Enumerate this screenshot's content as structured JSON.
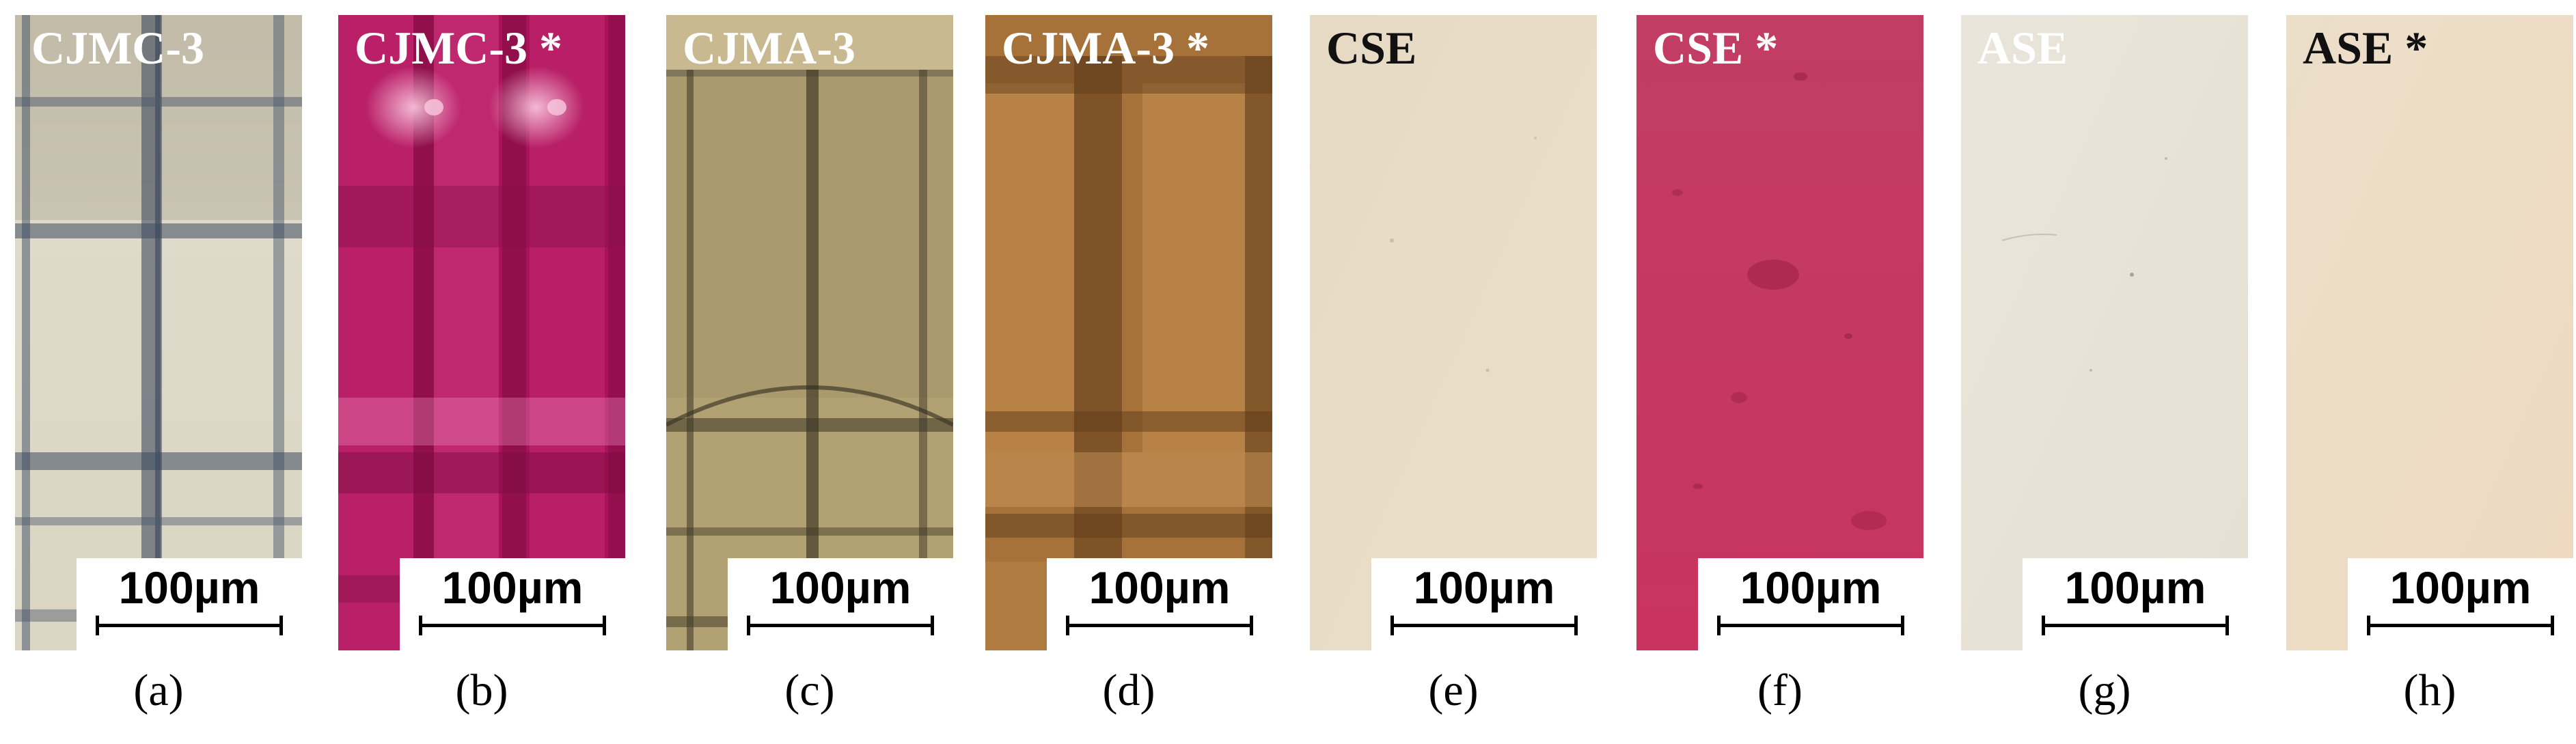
{
  "figure": {
    "panels": [
      {
        "id": "a",
        "title": "CJMC-3",
        "label": "(a)",
        "scale": "100µm",
        "tone": "light",
        "base": "#d9d3bd",
        "pattern": "grid-blue"
      },
      {
        "id": "b",
        "title": "CJMC-3 *",
        "label": "(b)",
        "scale": "100µm",
        "tone": "light",
        "base": "#b5175f",
        "pattern": "grid-magenta"
      },
      {
        "id": "c",
        "title": "CJMA-3",
        "label": "(c)",
        "scale": "100µm",
        "tone": "light",
        "base": "#b59f72",
        "pattern": "grid-brown"
      },
      {
        "id": "d",
        "title": "CJMA-3 *",
        "label": "(d)",
        "scale": "100µm",
        "tone": "light",
        "base": "#b07a3d",
        "pattern": "grid-orange"
      },
      {
        "id": "e",
        "title": "CSE",
        "label": "(e)",
        "scale": "100µm",
        "tone": "dark",
        "base": "#e8dcc6",
        "pattern": "plain"
      },
      {
        "id": "f",
        "title": "CSE *",
        "label": "(f)",
        "scale": "100µm",
        "tone": "light",
        "base": "#c5375f",
        "pattern": "speckle"
      },
      {
        "id": "g",
        "title": "ASE",
        "label": "(g)",
        "scale": "100µm",
        "tone": "dark",
        "base": "#e9e4d9",
        "pattern": "plain"
      },
      {
        "id": "h",
        "title": "ASE *",
        "label": "(h)",
        "scale": "100µm",
        "tone": "dark",
        "base": "#ecdcc6",
        "pattern": "plain"
      }
    ]
  }
}
